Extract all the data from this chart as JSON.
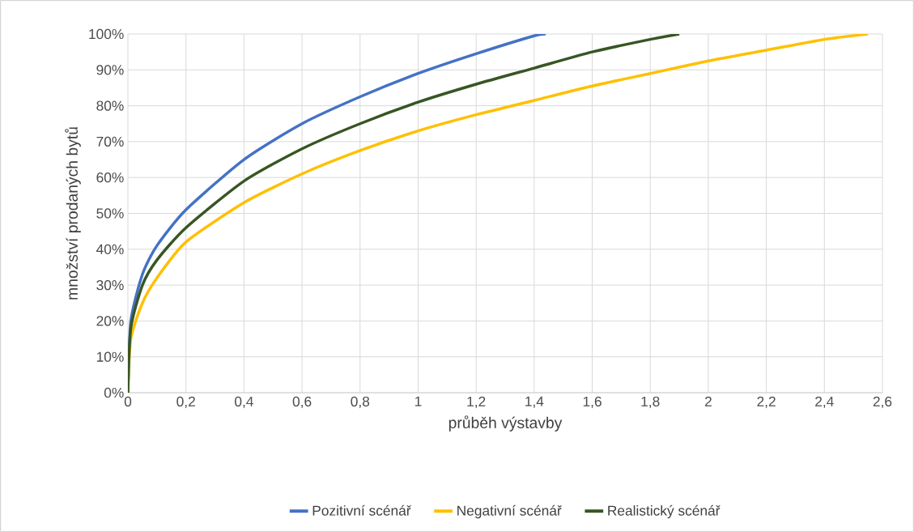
{
  "chart_data": {
    "type": "line",
    "xlabel": "průběh výstavby",
    "ylabel": "množství prodaných bytů",
    "xlim": [
      0,
      2.6
    ],
    "ylim": [
      0,
      100
    ],
    "xticks": [
      0,
      {
        "value": 0.2,
        "label": "0,2"
      },
      {
        "value": 0.4,
        "label": "0,4"
      },
      {
        "value": 0.6,
        "label": "0,6"
      },
      {
        "value": 0.8,
        "label": "0,8"
      },
      1,
      {
        "value": 1.2,
        "label": "1,2"
      },
      {
        "value": 1.4,
        "label": "1,4"
      },
      {
        "value": 1.6,
        "label": "1,6"
      },
      {
        "value": 1.8,
        "label": "1,8"
      },
      2,
      {
        "value": 2.2,
        "label": "2,2"
      },
      {
        "value": 2.4,
        "label": "2,4"
      },
      {
        "value": 2.6,
        "label": "2,6"
      }
    ],
    "yticks": [
      {
        "value": 0,
        "label": "0%"
      },
      {
        "value": 10,
        "label": "10%"
      },
      {
        "value": 20,
        "label": "20%"
      },
      {
        "value": 30,
        "label": "30%"
      },
      {
        "value": 40,
        "label": "40%"
      },
      {
        "value": 50,
        "label": "50%"
      },
      {
        "value": 60,
        "label": "60%"
      },
      {
        "value": 70,
        "label": "70%"
      },
      {
        "value": 80,
        "label": "80%"
      },
      {
        "value": 90,
        "label": "90%"
      },
      {
        "value": 100,
        "label": "100%"
      }
    ],
    "grid": true,
    "legend": "bottom",
    "series": [
      {
        "name": "Pozitivní scénář",
        "color": "#4472c4",
        "x": [
          0,
          0.01,
          0.05,
          0.1,
          0.2,
          0.4,
          0.6,
          0.8,
          1.0,
          1.2,
          1.4,
          1.44
        ],
        "values": [
          0,
          20,
          33,
          41,
          51,
          65,
          75,
          82.5,
          89,
          94.5,
          99.5,
          100
        ]
      },
      {
        "name": "Negativní scénář",
        "color": "#ffc000",
        "x": [
          0,
          0.01,
          0.05,
          0.1,
          0.2,
          0.4,
          0.6,
          0.8,
          1.0,
          1.2,
          1.4,
          1.6,
          1.8,
          2.0,
          2.2,
          2.4,
          2.55
        ],
        "values": [
          0,
          15,
          25,
          32,
          42,
          53,
          61,
          67.5,
          73,
          77.5,
          81.5,
          85.5,
          89,
          92.5,
          95.5,
          98.5,
          100
        ]
      },
      {
        "name": "Realistický scénář",
        "color": "#375623",
        "x": [
          0,
          0.01,
          0.05,
          0.1,
          0.2,
          0.4,
          0.6,
          0.8,
          1.0,
          1.2,
          1.4,
          1.6,
          1.8,
          1.9
        ],
        "values": [
          0,
          18,
          30,
          37,
          46,
          59,
          68,
          75,
          81,
          86,
          90.5,
          95,
          98.5,
          100
        ]
      }
    ]
  }
}
